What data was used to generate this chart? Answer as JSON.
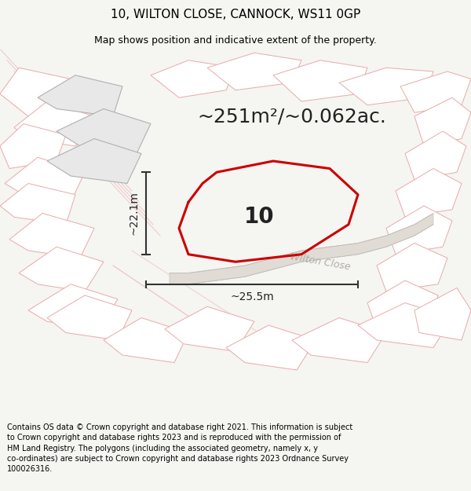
{
  "title": "10, WILTON CLOSE, CANNOCK, WS11 0GP",
  "subtitle": "Map shows position and indicative extent of the property.",
  "area_text": "~251m²/~0.062ac.",
  "width_text": "~25.5m",
  "height_text": "~22.1m",
  "property_number": "10",
  "street_name": "Wilton Close",
  "footer": "Contains OS data © Crown copyright and database right 2021. This information is subject to Crown copyright and database rights 2023 and is reproduced with the permission of HM Land Registry. The polygons (including the associated geometry, namely x, y co-ordinates) are subject to Crown copyright and database rights 2023 Ordnance Survey 100026316.",
  "bg_color": "#f5f5f2",
  "map_bg": "#ffffff",
  "plot_color": "#cc0000",
  "building_pink_outline": "#e8aaaa",
  "building_pink_fill": "#ffffff",
  "building_gray_outline": "#b0b0b0",
  "building_gray_fill": "#e8e8e8",
  "road_fill": "#e0dcd5",
  "road_outline": "#c8c4bc",
  "measure_color": "#333333",
  "text_color": "#222222",
  "street_label_color": "#b0aca8",
  "title_fontsize": 11,
  "subtitle_fontsize": 9,
  "area_fontsize": 18,
  "number_fontsize": 20,
  "measure_fontsize": 10,
  "street_fontsize": 9,
  "footer_fontsize": 7
}
